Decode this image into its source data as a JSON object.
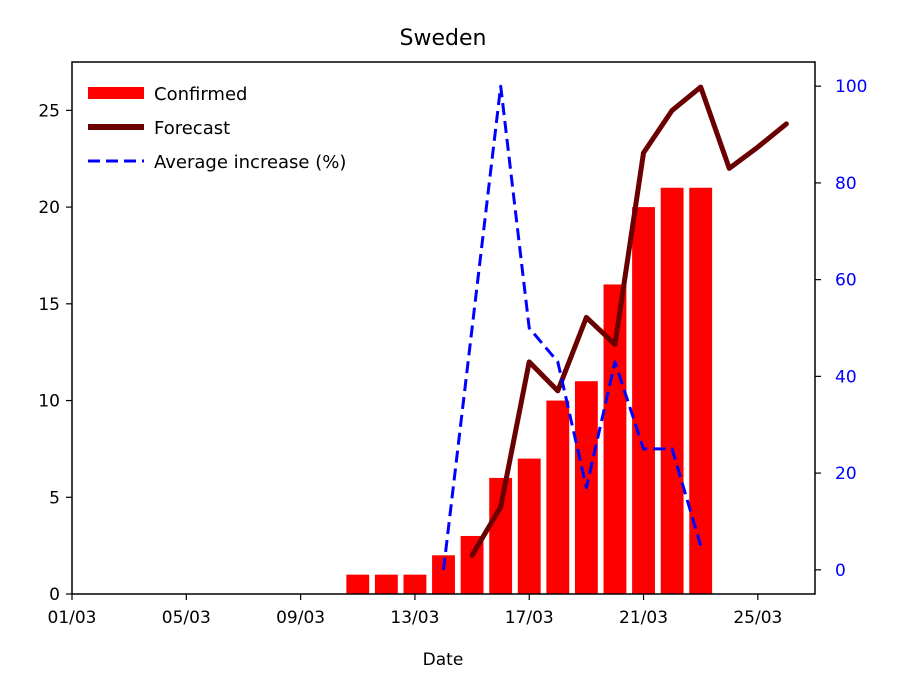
{
  "chart_data": {
    "type": "bar",
    "title": "Sweden",
    "xlabel": "Date",
    "ylabel": "",
    "ylabel_right": "",
    "x_ticks": [
      "01/03",
      "05/03",
      "09/03",
      "13/03",
      "17/03",
      "21/03",
      "25/03"
    ],
    "xlim": [
      "01/03",
      "27/03"
    ],
    "ylim": [
      0,
      27.5
    ],
    "ylim_right": [
      -5,
      105
    ],
    "y_ticks": [
      0,
      5,
      10,
      15,
      20,
      25
    ],
    "y_ticks_right": [
      0,
      20,
      40,
      60,
      80,
      100
    ],
    "legend_position": "top-left",
    "grid": false,
    "series": [
      {
        "name": "Confirmed",
        "kind": "bar",
        "axis": "left",
        "color": "#ff0000",
        "points": [
          {
            "x": "11/03",
            "y": 1
          },
          {
            "x": "12/03",
            "y": 1
          },
          {
            "x": "13/03",
            "y": 1
          },
          {
            "x": "14/03",
            "y": 2
          },
          {
            "x": "15/03",
            "y": 3
          },
          {
            "x": "16/03",
            "y": 6
          },
          {
            "x": "17/03",
            "y": 7
          },
          {
            "x": "18/03",
            "y": 10
          },
          {
            "x": "19/03",
            "y": 11
          },
          {
            "x": "20/03",
            "y": 16
          },
          {
            "x": "21/03",
            "y": 20
          },
          {
            "x": "22/03",
            "y": 21
          },
          {
            "x": "23/03",
            "y": 21
          }
        ]
      },
      {
        "name": "Forecast",
        "kind": "line",
        "axis": "left",
        "color": "#6b0000",
        "points": [
          {
            "x": "15/03",
            "y": 2.0
          },
          {
            "x": "16/03",
            "y": 4.5
          },
          {
            "x": "17/03",
            "y": 12.0
          },
          {
            "x": "18/03",
            "y": 10.5
          },
          {
            "x": "19/03",
            "y": 14.3
          },
          {
            "x": "20/03",
            "y": 12.9
          },
          {
            "x": "21/03",
            "y": 22.8
          },
          {
            "x": "22/03",
            "y": 25.0
          },
          {
            "x": "23/03",
            "y": 26.2
          },
          {
            "x": "24/03",
            "y": 22.0
          },
          {
            "x": "25/03",
            "y": 23.1
          },
          {
            "x": "26/03",
            "y": 24.3
          }
        ]
      },
      {
        "name": "Average increase (%)",
        "kind": "line-dashed",
        "axis": "right",
        "color": "#0000ff",
        "points": [
          {
            "x": "14/03",
            "y": 0
          },
          {
            "x": "16/03",
            "y": 100
          },
          {
            "x": "17/03",
            "y": 50
          },
          {
            "x": "18/03",
            "y": 43
          },
          {
            "x": "19/03",
            "y": 17
          },
          {
            "x": "20/03",
            "y": 43
          },
          {
            "x": "21/03",
            "y": 25
          },
          {
            "x": "22/03",
            "y": 25
          },
          {
            "x": "23/03",
            "y": 5
          }
        ]
      }
    ]
  }
}
